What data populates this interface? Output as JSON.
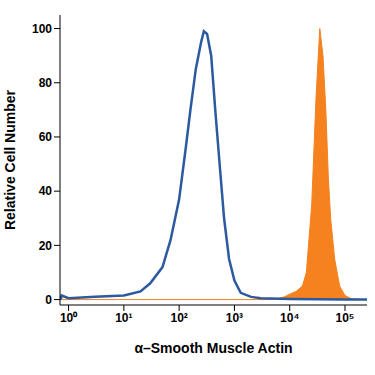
{
  "chart_data": {
    "type": "line",
    "x_label": "α–Smooth Muscle Actin",
    "y_label": "Relative Cell Number",
    "log": "x",
    "grid": false,
    "xlim": [
      0.7,
      250000
    ],
    "xticks": [
      {
        "value": 1,
        "label": "10⁰"
      },
      {
        "value": 10,
        "label": "10¹"
      },
      {
        "value": 100,
        "label": "10²"
      },
      {
        "value": 1000,
        "label": "10³"
      },
      {
        "value": 10000,
        "label": "10⁴"
      },
      {
        "value": 100000,
        "label": "10⁵"
      }
    ],
    "ylim": [
      -2,
      105
    ],
    "yticks": [
      0,
      20,
      40,
      60,
      80,
      100
    ],
    "series": [
      {
        "type": "line",
        "color": "#2c5aa0",
        "x": [
          0.72,
          0.75,
          1,
          3,
          10,
          20,
          30,
          50,
          70,
          100,
          130,
          160,
          200,
          250,
          280,
          320,
          380,
          450,
          550,
          650,
          800,
          1000,
          1300,
          2000,
          3000,
          10000,
          100000,
          250000
        ],
        "values": [
          0,
          1.5,
          0.5,
          1,
          1.5,
          3,
          6,
          12,
          22,
          37,
          55,
          70,
          85,
          95,
          99,
          98,
          90,
          70,
          48,
          30,
          15,
          7,
          2.5,
          1,
          0.5,
          0.2,
          0,
          0
        ]
      },
      {
        "type": "area",
        "color": "#f5821f",
        "x": [
          0.72,
          1,
          5000,
          8000,
          10000,
          13000,
          17000,
          20000,
          25000,
          30000,
          35000,
          40000,
          45000,
          50000,
          55000,
          65000,
          80000,
          100000,
          130000,
          200000,
          250000
        ],
        "values": [
          0,
          0,
          0,
          1,
          2,
          3,
          5,
          10,
          35,
          75,
          100,
          90,
          70,
          45,
          30,
          15,
          5,
          1.5,
          0.3,
          0,
          0
        ]
      }
    ]
  }
}
